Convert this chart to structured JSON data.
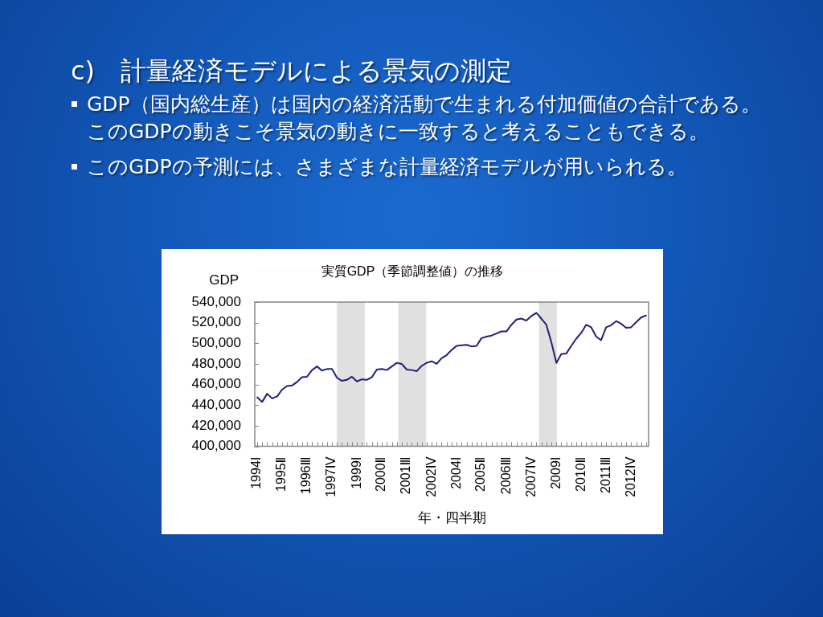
{
  "chart_data": {
    "type": "line",
    "title": "実質GDP（季節調整値）の推移",
    "xlabel": "年・四半期",
    "ylabel": "GDP",
    "annotations": [
      "c)　計量経済モデルによる景気の測定",
      "GDP（国内総生産）は国内の経済活動で生まれる付加価値の合計である。このGDPの動きこそ景気の動きに一致すると考えることもできる。",
      "このGDPの予測には、さまざまな計量経済モデルが用いられる。"
    ],
    "x": [
      "1994-02-15",
      "1994-05-15",
      "1994-08-15",
      "1994-11-15",
      "1995-02-15",
      "1995-05-15",
      "1995-08-15",
      "1995-11-15",
      "1996-02-15",
      "1996-05-15",
      "1996-08-15",
      "1996-11-15",
      "1997-02-15",
      "1997-05-15",
      "1997-08-15",
      "1997-11-15",
      "1998-02-15",
      "1998-05-15",
      "1998-08-15",
      "1998-11-15",
      "1999-02-15",
      "1999-05-15",
      "1999-08-15",
      "1999-11-15",
      "2000-02-15",
      "2000-05-15",
      "2000-08-15",
      "2000-11-15",
      "2001-02-15",
      "2001-05-15",
      "2001-08-15",
      "2001-11-15",
      "2002-02-15",
      "2002-05-15",
      "2002-08-15",
      "2002-11-15",
      "2003-02-15",
      "2003-05-15",
      "2003-08-15",
      "2003-11-15",
      "2004-02-15",
      "2004-05-15",
      "2004-08-15",
      "2004-11-15",
      "2005-02-15",
      "2005-05-15",
      "2005-08-15",
      "2005-11-15",
      "2006-02-15",
      "2006-05-15",
      "2006-08-15",
      "2006-11-15",
      "2007-02-15",
      "2007-05-15",
      "2007-08-15",
      "2007-11-15",
      "2008-02-15",
      "2008-05-15",
      "2008-08-15",
      "2008-11-15",
      "2009-02-15",
      "2009-05-15",
      "2009-08-15",
      "2009-11-15",
      "2010-02-15",
      "2010-05-15",
      "2010-08-15",
      "2010-11-15",
      "2011-02-15",
      "2011-05-15",
      "2011-08-15",
      "2011-11-15",
      "2012-02-15",
      "2012-05-15",
      "2012-08-15",
      "2012-11-15",
      "2013-02-15",
      "2013-05-15",
      "2013-08-15"
    ],
    "values": [
      447500,
      443000,
      451000,
      446500,
      448500,
      455000,
      458500,
      459000,
      462500,
      467000,
      467500,
      474000,
      477500,
      473500,
      475000,
      475000,
      466500,
      463500,
      464500,
      467500,
      463000,
      465000,
      464500,
      467000,
      474500,
      475000,
      474000,
      477500,
      481000,
      480000,
      474500,
      474000,
      473000,
      478000,
      481000,
      482500,
      480000,
      485500,
      488500,
      493500,
      497500,
      498000,
      498500,
      497000,
      497500,
      505000,
      506500,
      507500,
      509500,
      511500,
      511500,
      518000,
      523000,
      524000,
      522000,
      526500,
      529500,
      524000,
      518000,
      501000,
      481000,
      489500,
      490000,
      497500,
      504500,
      510000,
      518000,
      515500,
      506500,
      503000,
      515500,
      517500,
      521500,
      519000,
      515000,
      515500,
      520500,
      525000,
      527000
    ],
    "color": "#1f1f7a",
    "marker": "none",
    "xlim": [
      "1994-01-01",
      "2013-10-01"
    ],
    "xticks": [
      {
        "value": "1994-02-15",
        "label": "1994Ⅰ"
      },
      {
        "value": "1994-05-15",
        "label": null
      },
      {
        "value": "1994-08-15",
        "label": null
      },
      {
        "value": "1994-11-15",
        "label": null
      },
      {
        "value": "1995-02-15",
        "label": null
      },
      {
        "value": "1995-05-15",
        "label": "1995Ⅱ"
      },
      {
        "value": "1995-08-15",
        "label": null
      },
      {
        "value": "1995-11-15",
        "label": null
      },
      {
        "value": "1996-02-15",
        "label": null
      },
      {
        "value": "1996-05-15",
        "label": null
      },
      {
        "value": "1996-08-15",
        "label": "1996Ⅲ"
      },
      {
        "value": "1996-11-15",
        "label": null
      },
      {
        "value": "1997-02-15",
        "label": null
      },
      {
        "value": "1997-05-15",
        "label": null
      },
      {
        "value": "1997-08-15",
        "label": null
      },
      {
        "value": "1997-11-15",
        "label": "1997Ⅳ"
      },
      {
        "value": "1998-02-15",
        "label": null
      },
      {
        "value": "1998-05-15",
        "label": null
      },
      {
        "value": "1998-08-15",
        "label": null
      },
      {
        "value": "1998-11-15",
        "label": null
      },
      {
        "value": "1999-02-15",
        "label": "1999Ⅰ"
      },
      {
        "value": "1999-05-15",
        "label": null
      },
      {
        "value": "1999-08-15",
        "label": null
      },
      {
        "value": "1999-11-15",
        "label": null
      },
      {
        "value": "2000-02-15",
        "label": null
      },
      {
        "value": "2000-05-15",
        "label": "2000Ⅱ"
      },
      {
        "value": "2000-08-15",
        "label": null
      },
      {
        "value": "2000-11-15",
        "label": null
      },
      {
        "value": "2001-02-15",
        "label": null
      },
      {
        "value": "2001-05-15",
        "label": null
      },
      {
        "value": "2001-08-15",
        "label": "2001Ⅲ"
      },
      {
        "value": "2001-11-15",
        "label": null
      },
      {
        "value": "2002-02-15",
        "label": null
      },
      {
        "value": "2002-05-15",
        "label": null
      },
      {
        "value": "2002-08-15",
        "label": null
      },
      {
        "value": "2002-11-15",
        "label": "2002Ⅳ"
      },
      {
        "value": "2003-02-15",
        "label": null
      },
      {
        "value": "2003-05-15",
        "label": null
      },
      {
        "value": "2003-08-15",
        "label": null
      },
      {
        "value": "2003-11-15",
        "label": null
      },
      {
        "value": "2004-02-15",
        "label": "2004Ⅰ"
      },
      {
        "value": "2004-05-15",
        "label": null
      },
      {
        "value": "2004-08-15",
        "label": null
      },
      {
        "value": "2004-11-15",
        "label": null
      },
      {
        "value": "2005-02-15",
        "label": null
      },
      {
        "value": "2005-05-15",
        "label": "2005Ⅱ"
      },
      {
        "value": "2005-08-15",
        "label": null
      },
      {
        "value": "2005-11-15",
        "label": null
      },
      {
        "value": "2006-02-15",
        "label": null
      },
      {
        "value": "2006-05-15",
        "label": null
      },
      {
        "value": "2006-08-15",
        "label": "2006Ⅲ"
      },
      {
        "value": "2006-11-15",
        "label": null
      },
      {
        "value": "2007-02-15",
        "label": null
      },
      {
        "value": "2007-05-15",
        "label": null
      },
      {
        "value": "2007-08-15",
        "label": null
      },
      {
        "value": "2007-11-15",
        "label": "2007Ⅳ"
      },
      {
        "value": "2008-02-15",
        "label": null
      },
      {
        "value": "2008-05-15",
        "label": null
      },
      {
        "value": "2008-08-15",
        "label": null
      },
      {
        "value": "2008-11-15",
        "label": null
      },
      {
        "value": "2009-02-15",
        "label": "2009Ⅰ"
      },
      {
        "value": "2009-05-15",
        "label": null
      },
      {
        "value": "2009-08-15",
        "label": null
      },
      {
        "value": "2009-11-15",
        "label": null
      },
      {
        "value": "2010-02-15",
        "label": null
      },
      {
        "value": "2010-05-15",
        "label": "2010Ⅱ"
      },
      {
        "value": "2010-08-15",
        "label": null
      },
      {
        "value": "2010-11-15",
        "label": null
      },
      {
        "value": "2011-02-15",
        "label": null
      },
      {
        "value": "2011-05-15",
        "label": null
      },
      {
        "value": "2011-08-15",
        "label": "2011Ⅲ"
      },
      {
        "value": "2011-11-15",
        "label": null
      },
      {
        "value": "2012-02-15",
        "label": null
      },
      {
        "value": "2012-05-15",
        "label": null
      },
      {
        "value": "2012-08-15",
        "label": null
      },
      {
        "value": "2012-11-15",
        "label": "2012Ⅳ"
      },
      {
        "value": "2013-02-15",
        "label": null
      },
      {
        "value": "2013-05-15",
        "label": null
      },
      {
        "value": "2013-08-15",
        "label": null
      }
    ],
    "ylim": [
      400000,
      540000
    ],
    "yticks": [
      {
        "value": 400000,
        "label": "400,000"
      },
      {
        "value": 420000,
        "label": "420,000"
      },
      {
        "value": 440000,
        "label": "440,000"
      },
      {
        "value": 460000,
        "label": "460,000"
      },
      {
        "value": 480000,
        "label": "480,000"
      },
      {
        "value": 500000,
        "label": "500,000"
      },
      {
        "value": 520000,
        "label": "520,000"
      },
      {
        "value": 540000,
        "label": "540,000"
      }
    ],
    "bands": [
      {
        "axis": "x",
        "from": "1998-02-15",
        "to": "1999-07-10",
        "color": "#e0e0e0"
      },
      {
        "axis": "x",
        "from": "2001-03-14",
        "to": "2002-08-08",
        "color": "#e0e0e0"
      },
      {
        "axis": "x",
        "from": "2008-04-01",
        "to": "2009-02-25",
        "color": "#e0e0e0"
      }
    ]
  }
}
